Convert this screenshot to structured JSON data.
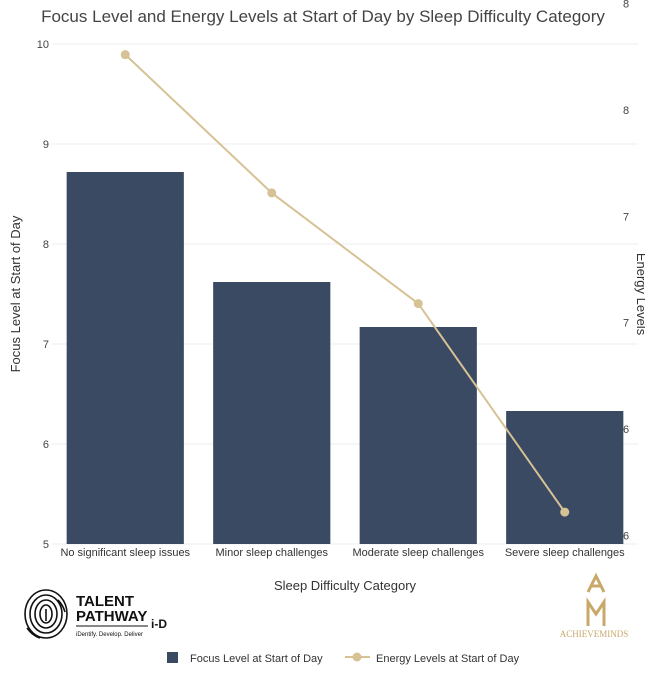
{
  "chart_data": {
    "type": "bar+line",
    "title": "Focus Level and Energy Levels at Start of Day by Sleep Difficulty Category",
    "xlabel": "Sleep Difficulty Category",
    "ylabel": "Focus Level at Start of Day",
    "y2label": "Energy Levels",
    "categories": [
      "No significant sleep issues",
      "Minor sleep challenges",
      "Moderate sleep challenges",
      "Severe sleep challenges"
    ],
    "ylim": [
      5,
      10
    ],
    "y_ticks": [
      "5",
      "6",
      "7",
      "8",
      "9",
      "10"
    ],
    "y2lim": [
      5.96,
      8.31
    ],
    "y2_ticks": [
      {
        "value": 6.0,
        "label": "6"
      },
      {
        "value": 6.5,
        "label": "6"
      },
      {
        "value": 7.0,
        "label": "7"
      },
      {
        "value": 7.5,
        "label": "7"
      },
      {
        "value": 8.0,
        "label": "8"
      },
      {
        "value": 8.5,
        "label": "8"
      }
    ],
    "series": [
      {
        "name": "Focus Level at Start of Day",
        "type": "bar",
        "axis": "y",
        "color": "#3a4a63",
        "values": [
          8.72,
          7.62,
          7.17,
          6.33
        ]
      },
      {
        "name": "Energy Levels at Start of Day",
        "type": "line",
        "axis": "y2",
        "color": "#d6c295",
        "values": [
          8.26,
          7.61,
          7.09,
          6.11
        ]
      }
    ],
    "legend_position": "bottom-center"
  },
  "logos": {
    "talent_line1": "TALENT",
    "talent_line2": "PATHWAY",
    "talent_suffix": "i-D",
    "talent_tagline": "iDentify. Develop. Deliver",
    "achieveminds": "ACHIEVEMINDS"
  }
}
